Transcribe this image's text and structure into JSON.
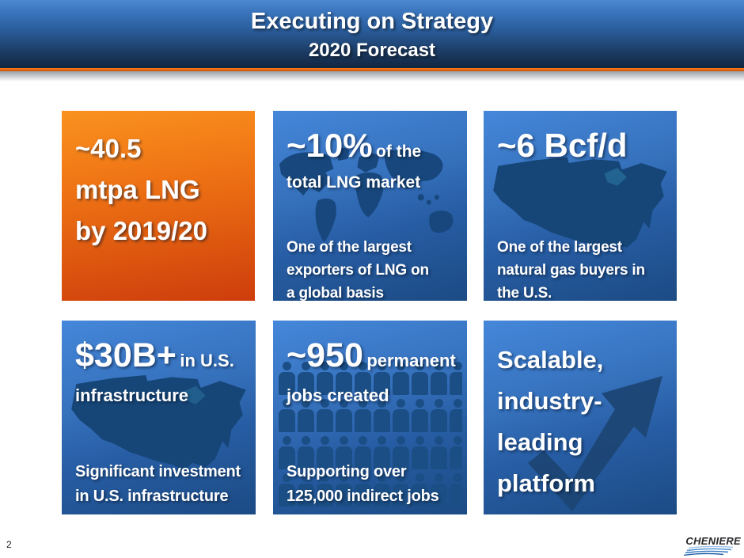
{
  "header": {
    "title": "Executing on Strategy",
    "subtitle": "2020 Forecast"
  },
  "tiles": [
    {
      "name": "lng-volume",
      "lines": [
        "~40.5",
        "mtpa LNG",
        "by 2019/20"
      ]
    },
    {
      "name": "lng-market-share",
      "big": "~10%",
      "small": "of the",
      "line2": "total LNG market",
      "bottom": [
        "One of the largest",
        "exporters of LNG on",
        "a global basis"
      ],
      "icon": "world-map"
    },
    {
      "name": "gas-demand",
      "big": "~6 Bcf/d",
      "bottom": [
        "One of the largest",
        "natural gas buyers in",
        "the U.S."
      ],
      "icon": "us-map"
    },
    {
      "name": "infrastructure-investment",
      "big": "$30B+",
      "small": "in U.S.",
      "line2": "infrastructure",
      "bottom": [
        "Significant investment",
        "in U.S. infrastructure"
      ],
      "icon": "us-map"
    },
    {
      "name": "jobs",
      "big": "~950",
      "small": "permanent",
      "line2": "jobs created",
      "bottom": [
        "Supporting over",
        "125,000 indirect jobs"
      ],
      "icon": "people-grid"
    },
    {
      "name": "platform",
      "lines": [
        "Scalable,",
        "industry-",
        "leading",
        "platform"
      ],
      "icon": "growth-arrow"
    }
  ],
  "footer": {
    "page_number": "2",
    "logo_text": "CHENIERE"
  },
  "colors": {
    "accent_orange": "#e4610c",
    "tile_orange_top": "#f9921f",
    "tile_orange_bottom": "#ce3d0c",
    "tile_blue_top": "#4587da",
    "tile_blue_bottom": "#1c4b84",
    "silhouette_navy": "#17477c",
    "header_top": "#4c88d0",
    "header_bottom": "#122540",
    "text_white": "#ffffff"
  }
}
